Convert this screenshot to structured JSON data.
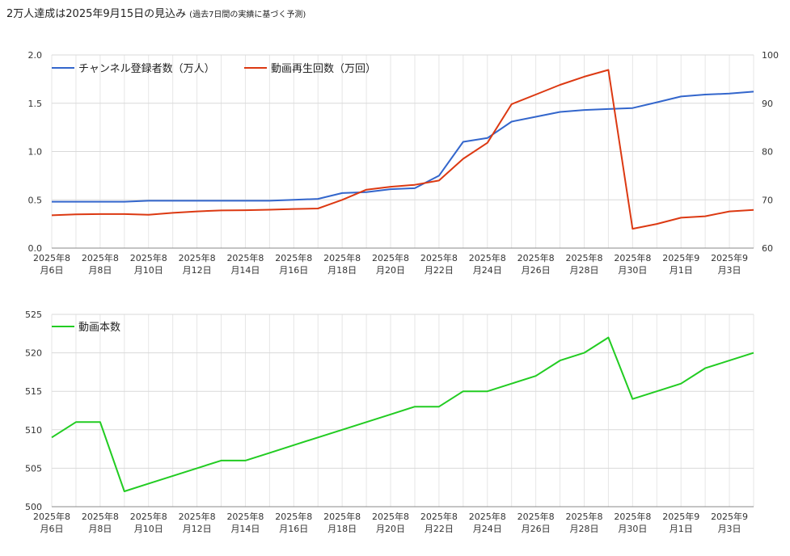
{
  "header": {
    "title": "2万人達成は2025年9月15日の見込み",
    "subtitle": "(過去7日間の実績に基づく予測)"
  },
  "chart_data": [
    {
      "type": "line",
      "x": [
        "2025-08-06",
        "2025-08-07",
        "2025-08-08",
        "2025-08-09",
        "2025-08-10",
        "2025-08-11",
        "2025-08-12",
        "2025-08-13",
        "2025-08-14",
        "2025-08-15",
        "2025-08-16",
        "2025-08-17",
        "2025-08-18",
        "2025-08-19",
        "2025-08-20",
        "2025-08-21",
        "2025-08-22",
        "2025-08-23",
        "2025-08-24",
        "2025-08-25",
        "2025-08-26",
        "2025-08-27",
        "2025-08-28",
        "2025-08-29",
        "2025-08-30",
        "2025-08-31",
        "2025-09-01",
        "2025-09-02",
        "2025-09-03",
        "2025-09-04"
      ],
      "x_tick_labels": [
        [
          "2025年8",
          "月6日"
        ],
        [
          "2025年8",
          "月8日"
        ],
        [
          "2025年8",
          "月10日"
        ],
        [
          "2025年8",
          "月12日"
        ],
        [
          "2025年8",
          "月14日"
        ],
        [
          "2025年8",
          "月16日"
        ],
        [
          "2025年8",
          "月18日"
        ],
        [
          "2025年8",
          "月20日"
        ],
        [
          "2025年8",
          "月22日"
        ],
        [
          "2025年8",
          "月24日"
        ],
        [
          "2025年8",
          "月26日"
        ],
        [
          "2025年8",
          "月28日"
        ],
        [
          "2025年8",
          "月30日"
        ],
        [
          "2025年9",
          "月1日"
        ],
        [
          "2025年9",
          "月3日"
        ]
      ],
      "series": [
        {
          "name": "チャンネル登録者数（万人）",
          "axis": "left",
          "color": "#3366cc",
          "values": [
            0.48,
            0.48,
            0.48,
            0.48,
            0.49,
            0.49,
            0.49,
            0.49,
            0.49,
            0.49,
            0.5,
            0.51,
            0.57,
            0.58,
            0.61,
            0.62,
            0.75,
            1.1,
            1.14,
            1.31,
            1.36,
            1.41,
            1.43,
            1.44,
            1.45,
            1.51,
            1.57,
            1.59,
            1.6,
            1.62
          ]
        },
        {
          "name": "動画再生回数（万回）",
          "axis": "right",
          "color": "#dc3912",
          "values": [
            66.8,
            67.0,
            67.05,
            67.05,
            66.9,
            67.3,
            67.6,
            67.8,
            67.85,
            67.95,
            68.1,
            68.2,
            70.0,
            72.1,
            72.7,
            73.1,
            74.0,
            78.5,
            81.8,
            89.8,
            91.8,
            93.8,
            95.5,
            96.9,
            64.0,
            65.0,
            66.3,
            66.6,
            67.6,
            67.9
          ]
        }
      ],
      "ylim_left": [
        0,
        2.0
      ],
      "yticks_left": [
        "0.0",
        "0.5",
        "1.0",
        "1.5",
        "2.0"
      ],
      "ylim_right": [
        60,
        100
      ],
      "yticks_right": [
        "60",
        "70",
        "80",
        "90",
        "100"
      ],
      "grid": true,
      "legend": "top-left"
    },
    {
      "type": "line",
      "x_tick_labels": [
        [
          "2025年8",
          "月6日"
        ],
        [
          "2025年8",
          "月8日"
        ],
        [
          "2025年8",
          "月10日"
        ],
        [
          "2025年8",
          "月12日"
        ],
        [
          "2025年8",
          "月14日"
        ],
        [
          "2025年8",
          "月16日"
        ],
        [
          "2025年8",
          "月18日"
        ],
        [
          "2025年8",
          "月20日"
        ],
        [
          "2025年8",
          "月22日"
        ],
        [
          "2025年8",
          "月24日"
        ],
        [
          "2025年8",
          "月26日"
        ],
        [
          "2025年8",
          "月28日"
        ],
        [
          "2025年8",
          "月30日"
        ],
        [
          "2025年9",
          "月1日"
        ],
        [
          "2025年9",
          "月3日"
        ]
      ],
      "series": [
        {
          "name": "動画本数",
          "color": "#22cc22",
          "values": [
            509,
            511,
            511,
            502,
            503,
            504,
            505,
            506,
            506,
            507,
            508,
            509,
            510,
            511,
            512,
            513,
            513,
            515,
            515,
            516,
            517,
            519,
            520,
            522,
            514,
            515,
            516,
            518,
            519,
            520
          ]
        }
      ],
      "ylim": [
        500,
        525
      ],
      "yticks": [
        "500",
        "505",
        "510",
        "515",
        "520",
        "525"
      ],
      "grid": true,
      "legend": "top-left"
    }
  ]
}
